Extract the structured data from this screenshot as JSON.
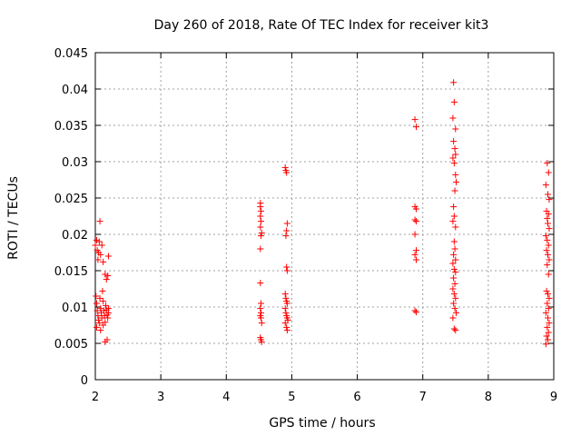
{
  "chart_data": {
    "type": "scatter",
    "title": "Day 260 of 2018, Rate Of TEC Index for receiver kit3",
    "xlabel": "GPS time / hours",
    "ylabel": "ROTI / TECUs",
    "xlim": [
      2,
      9
    ],
    "ylim": [
      0,
      0.045
    ],
    "xticks": [
      "2",
      "3",
      "4",
      "5",
      "6",
      "7",
      "8",
      "9"
    ],
    "yticks": [
      "0",
      "0.005",
      "0.01",
      "0.015",
      "0.02",
      "0.025",
      "0.03",
      "0.035",
      "0.04",
      "0.045"
    ],
    "grid": true,
    "marker": "+",
    "series": [
      {
        "name": "ROTI",
        "color": "#ff0000",
        "points": [
          [
            2.0,
            0.0185
          ],
          [
            2.02,
            0.0192
          ],
          [
            2.03,
            0.0178
          ],
          [
            2.04,
            0.0165
          ],
          [
            2.05,
            0.0175
          ],
          [
            2.06,
            0.019
          ],
          [
            2.07,
            0.0218
          ],
          [
            2.08,
            0.0172
          ],
          [
            2.1,
            0.0185
          ],
          [
            2.12,
            0.0162
          ],
          [
            2.15,
            0.0145
          ],
          [
            2.17,
            0.0138
          ],
          [
            2.19,
            0.0143
          ],
          [
            2.2,
            0.017
          ],
          [
            2.01,
            0.0115
          ],
          [
            2.02,
            0.0105
          ],
          [
            2.03,
            0.0095
          ],
          [
            2.04,
            0.0088
          ],
          [
            2.05,
            0.0082
          ],
          [
            2.06,
            0.0078
          ],
          [
            2.07,
            0.0112
          ],
          [
            2.08,
            0.0098
          ],
          [
            2.09,
            0.0092
          ],
          [
            2.1,
            0.0085
          ],
          [
            2.11,
            0.0122
          ],
          [
            2.12,
            0.0108
          ],
          [
            2.13,
            0.0095
          ],
          [
            2.14,
            0.0088
          ],
          [
            2.15,
            0.0079
          ],
          [
            2.16,
            0.0102
          ],
          [
            2.17,
            0.0096
          ],
          [
            2.18,
            0.0089
          ],
          [
            2.19,
            0.0085
          ],
          [
            2.2,
            0.0092
          ],
          [
            2.02,
            0.0072
          ],
          [
            2.08,
            0.0068
          ],
          [
            2.12,
            0.0075
          ],
          [
            2.15,
            0.0052
          ],
          [
            2.18,
            0.0055
          ],
          [
            2.2,
            0.0098
          ],
          [
            4.52,
            0.0243
          ],
          [
            4.52,
            0.0238
          ],
          [
            4.53,
            0.0232
          ],
          [
            4.52,
            0.0225
          ],
          [
            4.53,
            0.0218
          ],
          [
            4.52,
            0.021
          ],
          [
            4.54,
            0.0202
          ],
          [
            4.53,
            0.0198
          ],
          [
            4.52,
            0.018
          ],
          [
            4.52,
            0.0133
          ],
          [
            4.53,
            0.0105
          ],
          [
            4.52,
            0.0098
          ],
          [
            4.53,
            0.0092
          ],
          [
            4.52,
            0.0088
          ],
          [
            4.53,
            0.0085
          ],
          [
            4.54,
            0.0078
          ],
          [
            4.52,
            0.0058
          ],
          [
            4.53,
            0.0055
          ],
          [
            4.54,
            0.0052
          ],
          [
            4.9,
            0.0292
          ],
          [
            4.91,
            0.0288
          ],
          [
            4.92,
            0.0285
          ],
          [
            4.93,
            0.0215
          ],
          [
            4.92,
            0.0205
          ],
          [
            4.91,
            0.0198
          ],
          [
            4.92,
            0.0155
          ],
          [
            4.93,
            0.015
          ],
          [
            4.9,
            0.0118
          ],
          [
            4.91,
            0.0112
          ],
          [
            4.92,
            0.0108
          ],
          [
            4.93,
            0.0105
          ],
          [
            4.9,
            0.0098
          ],
          [
            4.91,
            0.0092
          ],
          [
            4.92,
            0.0088
          ],
          [
            4.93,
            0.0085
          ],
          [
            4.94,
            0.0082
          ],
          [
            4.9,
            0.0078
          ],
          [
            4.92,
            0.0072
          ],
          [
            4.93,
            0.0068
          ],
          [
            6.88,
            0.0358
          ],
          [
            6.9,
            0.0348
          ],
          [
            6.88,
            0.0238
          ],
          [
            6.9,
            0.0235
          ],
          [
            6.88,
            0.022
          ],
          [
            6.9,
            0.0218
          ],
          [
            6.88,
            0.02
          ],
          [
            6.9,
            0.0178
          ],
          [
            6.88,
            0.0172
          ],
          [
            6.9,
            0.0165
          ],
          [
            6.88,
            0.0095
          ],
          [
            6.9,
            0.0093
          ],
          [
            7.47,
            0.0409
          ],
          [
            7.48,
            0.0382
          ],
          [
            7.46,
            0.036
          ],
          [
            7.5,
            0.0345
          ],
          [
            7.47,
            0.0328
          ],
          [
            7.49,
            0.0318
          ],
          [
            7.5,
            0.031
          ],
          [
            7.46,
            0.0305
          ],
          [
            7.48,
            0.0298
          ],
          [
            7.5,
            0.0282
          ],
          [
            7.51,
            0.0272
          ],
          [
            7.49,
            0.026
          ],
          [
            7.47,
            0.0238
          ],
          [
            7.48,
            0.0225
          ],
          [
            7.46,
            0.0218
          ],
          [
            7.5,
            0.021
          ],
          [
            7.48,
            0.019
          ],
          [
            7.49,
            0.018
          ],
          [
            7.47,
            0.0172
          ],
          [
            7.5,
            0.0165
          ],
          [
            7.46,
            0.016
          ],
          [
            7.48,
            0.0152
          ],
          [
            7.5,
            0.0148
          ],
          [
            7.47,
            0.014
          ],
          [
            7.49,
            0.0132
          ],
          [
            7.46,
            0.0125
          ],
          [
            7.48,
            0.0118
          ],
          [
            7.5,
            0.0112
          ],
          [
            7.47,
            0.0105
          ],
          [
            7.49,
            0.0098
          ],
          [
            7.51,
            0.0092
          ],
          [
            7.46,
            0.0085
          ],
          [
            7.48,
            0.007
          ],
          [
            7.5,
            0.0068
          ],
          [
            8.9,
            0.0298
          ],
          [
            8.92,
            0.0285
          ],
          [
            8.88,
            0.0268
          ],
          [
            8.91,
            0.0255
          ],
          [
            8.93,
            0.0248
          ],
          [
            8.89,
            0.0232
          ],
          [
            8.92,
            0.0228
          ],
          [
            8.9,
            0.0222
          ],
          [
            8.91,
            0.0215
          ],
          [
            8.93,
            0.0208
          ],
          [
            8.88,
            0.0198
          ],
          [
            8.9,
            0.0192
          ],
          [
            8.92,
            0.0185
          ],
          [
            8.89,
            0.0178
          ],
          [
            8.91,
            0.0172
          ],
          [
            8.93,
            0.0165
          ],
          [
            8.9,
            0.0158
          ],
          [
            8.92,
            0.0145
          ],
          [
            8.89,
            0.0122
          ],
          [
            8.91,
            0.0118
          ],
          [
            8.93,
            0.0112
          ],
          [
            8.9,
            0.0105
          ],
          [
            8.92,
            0.0098
          ],
          [
            8.88,
            0.0092
          ],
          [
            8.91,
            0.0085
          ],
          [
            8.93,
            0.0078
          ],
          [
            8.9,
            0.0072
          ],
          [
            8.92,
            0.0065
          ],
          [
            8.89,
            0.006
          ],
          [
            8.91,
            0.0055
          ],
          [
            8.88,
            0.0049
          ]
        ]
      }
    ]
  }
}
